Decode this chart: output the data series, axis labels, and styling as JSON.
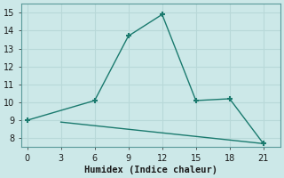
{
  "line1_x": [
    0,
    6,
    9,
    12,
    15,
    18,
    21
  ],
  "line1_y": [
    9,
    10.1,
    13.7,
    14.9,
    10.1,
    10.2,
    7.7
  ],
  "line2_x": [
    3,
    21
  ],
  "line2_y": [
    8.9,
    7.7
  ],
  "xlabel": "Humidex (Indice chaleur)",
  "ylim": [
    7.5,
    15.5
  ],
  "xlim": [
    -0.5,
    22.5
  ],
  "yticks": [
    8,
    9,
    10,
    11,
    12,
    13,
    14,
    15
  ],
  "xticks": [
    0,
    3,
    6,
    9,
    12,
    15,
    18,
    21
  ],
  "line_color": "#1a7a6e",
  "bg_color": "#cce8e8",
  "grid_color": "#b8d8d8"
}
